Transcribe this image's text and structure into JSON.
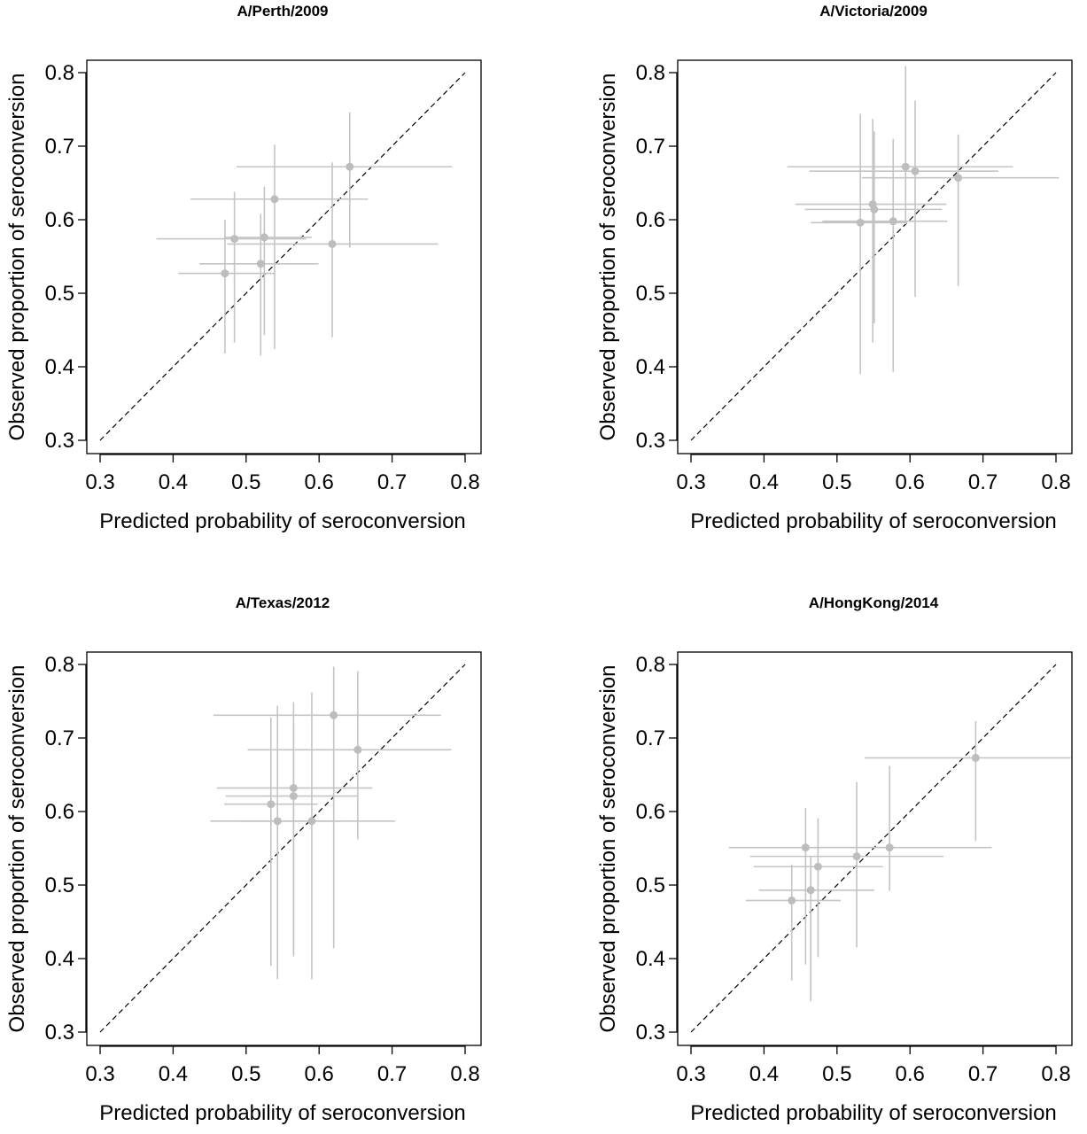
{
  "figure": {
    "xlabel": "Predicted probability of seroconversion",
    "ylabel": "Observed proportion of seroconversion"
  },
  "chart_data": [
    {
      "type": "scatter",
      "title": "A/Perth/2009",
      "xlabel": "Predicted probability of seroconversion",
      "ylabel": "Observed proportion of seroconversion",
      "xlim": [
        0.3,
        0.8
      ],
      "ylim": [
        0.3,
        0.8
      ],
      "xticks": [
        "0.3",
        "0.4",
        "0.5",
        "0.6",
        "0.7",
        "0.8"
      ],
      "yticks": [
        "0.3",
        "0.4",
        "0.5",
        "0.6",
        "0.7",
        "0.8"
      ],
      "reference_line": "y = x (dashed)",
      "points": [
        {
          "x": 0.642,
          "y": 0.672,
          "x_lo": 0.487,
          "x_hi": 0.782,
          "y_lo": 0.562,
          "y_hi": 0.746
        },
        {
          "x": 0.539,
          "y": 0.628,
          "x_lo": 0.424,
          "x_hi": 0.667,
          "y_lo": 0.424,
          "y_hi": 0.702
        },
        {
          "x": 0.484,
          "y": 0.574,
          "x_lo": 0.377,
          "x_hi": 0.582,
          "y_lo": 0.433,
          "y_hi": 0.638
        },
        {
          "x": 0.525,
          "y": 0.576,
          "x_lo": 0.47,
          "x_hi": 0.59,
          "y_lo": 0.443,
          "y_hi": 0.645
        },
        {
          "x": 0.618,
          "y": 0.567,
          "x_lo": 0.474,
          "x_hi": 0.763,
          "y_lo": 0.44,
          "y_hi": 0.678
        },
        {
          "x": 0.52,
          "y": 0.54,
          "x_lo": 0.436,
          "x_hi": 0.599,
          "y_lo": 0.415,
          "y_hi": 0.608
        },
        {
          "x": 0.471,
          "y": 0.527,
          "x_lo": 0.407,
          "x_hi": 0.54,
          "y_lo": 0.418,
          "y_hi": 0.6
        }
      ]
    },
    {
      "type": "scatter",
      "title": "A/Victoria/2009",
      "xlabel": "Predicted probability of seroconversion",
      "ylabel": "Observed proportion of seroconversion",
      "xlim": [
        0.3,
        0.8
      ],
      "ylim": [
        0.3,
        0.8
      ],
      "xticks": [
        "0.3",
        "0.4",
        "0.5",
        "0.6",
        "0.7",
        "0.8"
      ],
      "yticks": [
        "0.3",
        "0.4",
        "0.5",
        "0.6",
        "0.7",
        "0.8"
      ],
      "reference_line": "y = x (dashed)",
      "points": [
        {
          "x": 0.594,
          "y": 0.672,
          "x_lo": 0.432,
          "x_hi": 0.741,
          "y_lo": 0.594,
          "y_hi": 0.809
        },
        {
          "x": 0.607,
          "y": 0.666,
          "x_lo": 0.462,
          "x_hi": 0.721,
          "y_lo": 0.495,
          "y_hi": 0.762
        },
        {
          "x": 0.666,
          "y": 0.657,
          "x_lo": 0.534,
          "x_hi": 0.804,
          "y_lo": 0.51,
          "y_hi": 0.716
        },
        {
          "x": 0.549,
          "y": 0.621,
          "x_lo": 0.443,
          "x_hi": 0.65,
          "y_lo": 0.433,
          "y_hi": 0.737
        },
        {
          "x": 0.551,
          "y": 0.614,
          "x_lo": 0.456,
          "x_hi": 0.644,
          "y_lo": 0.459,
          "y_hi": 0.72
        },
        {
          "x": 0.532,
          "y": 0.596,
          "x_lo": 0.464,
          "x_hi": 0.596,
          "y_lo": 0.39,
          "y_hi": 0.744
        },
        {
          "x": 0.577,
          "y": 0.598,
          "x_lo": 0.48,
          "x_hi": 0.651,
          "y_lo": 0.393,
          "y_hi": 0.71
        }
      ]
    },
    {
      "type": "scatter",
      "title": "A/Texas/2012",
      "xlabel": "Predicted probability of seroconversion",
      "ylabel": "Observed proportion of seroconversion",
      "xlim": [
        0.3,
        0.8
      ],
      "ylim": [
        0.3,
        0.8
      ],
      "xticks": [
        "0.3",
        "0.4",
        "0.5",
        "0.6",
        "0.7",
        "0.8"
      ],
      "yticks": [
        "0.3",
        "0.4",
        "0.5",
        "0.6",
        "0.7",
        "0.8"
      ],
      "reference_line": "y = x (dashed)",
      "points": [
        {
          "x": 0.62,
          "y": 0.731,
          "x_lo": 0.455,
          "x_hi": 0.767,
          "y_lo": 0.414,
          "y_hi": 0.797
        },
        {
          "x": 0.653,
          "y": 0.684,
          "x_lo": 0.502,
          "x_hi": 0.781,
          "y_lo": 0.562,
          "y_hi": 0.791
        },
        {
          "x": 0.565,
          "y": 0.632,
          "x_lo": 0.46,
          "x_hi": 0.673,
          "y_lo": 0.403,
          "y_hi": 0.749
        },
        {
          "x": 0.565,
          "y": 0.621,
          "x_lo": 0.472,
          "x_hi": 0.652,
          "y_lo": 0.406,
          "y_hi": 0.72
        },
        {
          "x": 0.534,
          "y": 0.61,
          "x_lo": 0.47,
          "x_hi": 0.598,
          "y_lo": 0.39,
          "y_hi": 0.728
        },
        {
          "x": 0.543,
          "y": 0.587,
          "x_lo": 0.451,
          "x_hi": 0.63,
          "y_lo": 0.372,
          "y_hi": 0.744
        },
        {
          "x": 0.59,
          "y": 0.587,
          "x_lo": 0.489,
          "x_hi": 0.704,
          "y_lo": 0.372,
          "y_hi": 0.762
        }
      ]
    },
    {
      "type": "scatter",
      "title": "A/HongKong/2014",
      "xlabel": "Predicted probability of seroconversion",
      "ylabel": "Observed proportion of seroconversion",
      "xlim": [
        0.3,
        0.8
      ],
      "ylim": [
        0.3,
        0.8
      ],
      "xticks": [
        "0.3",
        "0.4",
        "0.5",
        "0.6",
        "0.7",
        "0.8"
      ],
      "yticks": [
        "0.3",
        "0.4",
        "0.5",
        "0.6",
        "0.7",
        "0.8"
      ],
      "reference_line": "y = x (dashed)",
      "points": [
        {
          "x": 0.69,
          "y": 0.673,
          "x_lo": 0.538,
          "x_hi": 0.82,
          "y_lo": 0.56,
          "y_hi": 0.723
        },
        {
          "x": 0.572,
          "y": 0.551,
          "x_lo": 0.466,
          "x_hi": 0.712,
          "y_lo": 0.492,
          "y_hi": 0.662
        },
        {
          "x": 0.527,
          "y": 0.539,
          "x_lo": 0.381,
          "x_hi": 0.646,
          "y_lo": 0.415,
          "y_hi": 0.64
        },
        {
          "x": 0.457,
          "y": 0.551,
          "x_lo": 0.352,
          "x_hi": 0.565,
          "y_lo": 0.392,
          "y_hi": 0.605
        },
        {
          "x": 0.474,
          "y": 0.525,
          "x_lo": 0.386,
          "x_hi": 0.563,
          "y_lo": 0.402,
          "y_hi": 0.591
        },
        {
          "x": 0.464,
          "y": 0.493,
          "x_lo": 0.393,
          "x_hi": 0.551,
          "y_lo": 0.342,
          "y_hi": 0.538
        },
        {
          "x": 0.438,
          "y": 0.479,
          "x_lo": 0.375,
          "x_hi": 0.505,
          "y_lo": 0.37,
          "y_hi": 0.528
        }
      ]
    }
  ]
}
